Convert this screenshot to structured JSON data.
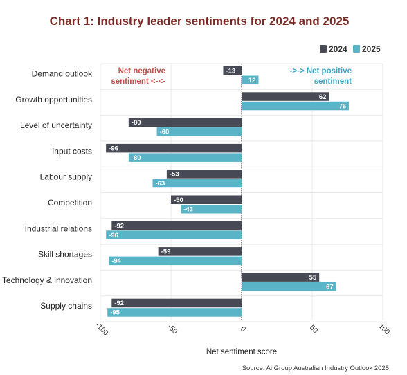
{
  "chart_data": {
    "type": "bar",
    "orientation": "horizontal",
    "title": "Chart 1: Industry leader sentiments for 2024 and 2025",
    "xlabel": "Net sentiment score",
    "ylabel": "",
    "xlim": [
      -100,
      100
    ],
    "xticks": [
      -100,
      -50,
      0,
      50,
      100
    ],
    "xtick_labels": [
      "-100",
      "-50",
      "0",
      "50",
      "100"
    ],
    "categories": [
      "Demand outlook",
      "Growth opportunities",
      "Level of uncertainty",
      "Input costs",
      "Labour supply",
      "Competition",
      "Industrial relations",
      "Skill shortages",
      "Technology & innovation",
      "Supply chains"
    ],
    "series": [
      {
        "name": "2024",
        "color": "#474a54",
        "values": [
          -13,
          62,
          -80,
          -96,
          -53,
          -50,
          -92,
          -59,
          55,
          -92
        ]
      },
      {
        "name": "2025",
        "color": "#5ab4c8",
        "values": [
          12,
          76,
          -60,
          -80,
          -63,
          -43,
          -96,
          -94,
          67,
          -95
        ]
      }
    ],
    "grid": true,
    "legend_position": "top-right",
    "annotations": {
      "negative": [
        "Net negative",
        "sentiment <-<-"
      ],
      "positive": [
        "->-> Net positive",
        "sentiment"
      ],
      "negative_color": "#c0504d",
      "positive_color": "#3aa6c4"
    },
    "source": "Source: Ai Group Australian Industry Outlook 2025"
  },
  "colors": {
    "title": "#7b2a25",
    "zero_line": "#333333",
    "grid": "#e8e8e8"
  }
}
